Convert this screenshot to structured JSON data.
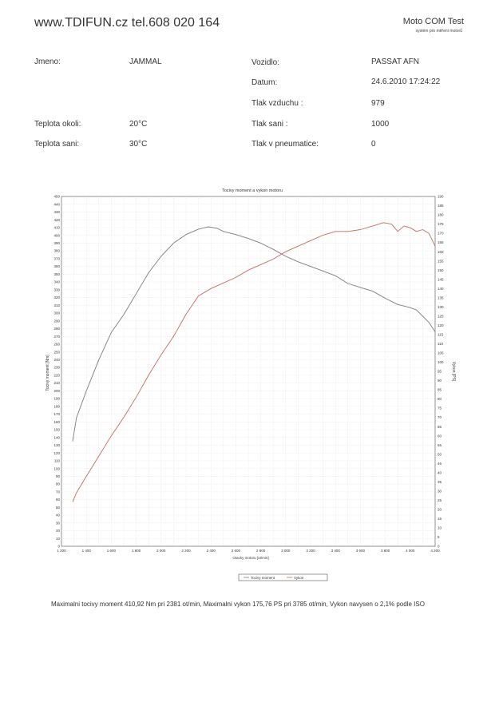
{
  "header": {
    "site": "www.TDIFUN.cz  tel.608 020 164",
    "brand_title": "Moto COM Test",
    "brand_subtitle": "systém pro měření motorů"
  },
  "info": {
    "jmeno_label": "Jmeno:",
    "jmeno_value": "JAMMAL",
    "vozidlo_label": "Vozidlo:",
    "vozidlo_value": "PASSAT AFN",
    "datum_label": "Datum:",
    "datum_value": "24.6.2010 17:24:22",
    "tlak_vzduchu_label": "Tlak vzduchu :",
    "tlak_vzduchu_value": "979",
    "teplota_okoli_label": "Teplota okoli:",
    "teplota_okoli_value": "20°C",
    "tlak_sani_label": "Tlak sani :",
    "tlak_sani_value": "1000",
    "teplota_sani_label": "Teplota sani:",
    "teplota_sani_value": "30°C",
    "tlak_pneu_label": "Tlak v pneumatice:",
    "tlak_pneu_value": "0"
  },
  "chart_data": {
    "type": "line",
    "title": "Tocivy moment a vykon motoru",
    "xlabel": "Otacky motoru [ot/min]",
    "ylabel_left": "Tocivy moment [Nm]",
    "ylabel_right": "Vykon [PS]",
    "xlim": [
      1200,
      4200
    ],
    "ylim_left": [
      0,
      450
    ],
    "ylim_right": [
      0,
      190
    ],
    "x_ticks": [
      1200,
      1400,
      1600,
      1800,
      2000,
      2200,
      2400,
      2600,
      2800,
      3000,
      3200,
      3400,
      3600,
      3800,
      4000,
      4200
    ],
    "x_tick_labels": [
      "1 200",
      "1 400",
      "1 600",
      "1 800",
      "2 000",
      "2 200",
      "2 400",
      "2 600",
      "2 800",
      "3 000",
      "3 200",
      "3 400",
      "3 600",
      "3 800",
      "4 000",
      "4 200"
    ],
    "y_left_step": 10,
    "y_right_step": 5,
    "grid": true,
    "legend_position": "bottom-center",
    "series": [
      {
        "name": "Tocivy moment",
        "axis": "left",
        "color": "#7a7a85",
        "x": [
          1290,
          1320,
          1400,
          1500,
          1600,
          1700,
          1800,
          1900,
          2000,
          2100,
          2200,
          2300,
          2381,
          2450,
          2500,
          2600,
          2700,
          2800,
          2900,
          3000,
          3100,
          3200,
          3300,
          3400,
          3500,
          3600,
          3700,
          3800,
          3900,
          3950,
          4000,
          4050,
          4100,
          4150,
          4200
        ],
        "y": [
          135,
          165,
          200,
          240,
          275,
          298,
          325,
          352,
          373,
          390,
          401,
          408,
          411,
          409,
          405,
          401,
          396,
          390,
          382,
          373,
          366,
          360,
          354,
          348,
          338,
          333,
          328,
          319,
          311,
          309,
          307,
          304,
          296,
          288,
          276
        ]
      },
      {
        "name": "Vykon",
        "axis": "right",
        "color": "#c86a5c",
        "x": [
          1290,
          1320,
          1400,
          1500,
          1600,
          1700,
          1800,
          1900,
          2000,
          2100,
          2200,
          2300,
          2400,
          2500,
          2600,
          2700,
          2800,
          2900,
          3000,
          3100,
          3200,
          3300,
          3400,
          3500,
          3600,
          3700,
          3785,
          3850,
          3900,
          3950,
          4000,
          4050,
          4100,
          4150,
          4200
        ],
        "y": [
          24,
          29,
          38,
          49,
          60,
          70,
          81,
          93,
          104,
          114,
          126,
          136,
          140,
          143,
          146,
          150,
          153,
          156,
          160,
          163,
          166,
          169,
          171,
          171,
          172,
          174,
          175.76,
          175,
          171,
          174,
          173,
          171,
          172,
          170,
          163
        ]
      }
    ]
  },
  "summary": "Maximalni tocivy moment 410,92 Nm pri 2381 ot/min,  Maximalni vykon 175,76 PS pri 3785 ot/min,  Vykon navysen o 2,1% podle ISO"
}
